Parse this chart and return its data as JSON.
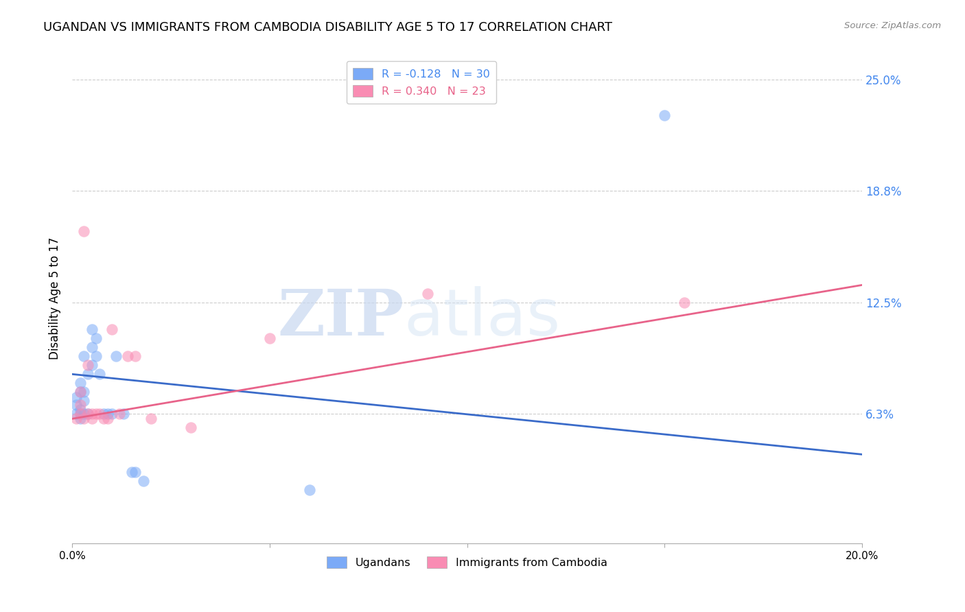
{
  "title": "UGANDAN VS IMMIGRANTS FROM CAMBODIA DISABILITY AGE 5 TO 17 CORRELATION CHART",
  "source": "Source: ZipAtlas.com",
  "ylabel": "Disability Age 5 to 17",
  "xlim": [
    0.0,
    0.2
  ],
  "ylim": [
    -0.01,
    0.265
  ],
  "xticks": [
    0.0,
    0.05,
    0.1,
    0.15,
    0.2
  ],
  "xticklabels": [
    "0.0%",
    "",
    "",
    "",
    "20.0%"
  ],
  "ytick_positions": [
    0.063,
    0.125,
    0.188,
    0.25
  ],
  "ytick_labels": [
    "6.3%",
    "12.5%",
    "18.8%",
    "25.0%"
  ],
  "legend_entries": [
    {
      "label": "R = -0.128   N = 30",
      "color": "#7baaf7"
    },
    {
      "label": "R = 0.340   N = 23",
      "color": "#f98cb3"
    }
  ],
  "legend_names": [
    "Ugandans",
    "Immigrants from Cambodia"
  ],
  "ugandan_x": [
    0.001,
    0.001,
    0.001,
    0.002,
    0.002,
    0.002,
    0.002,
    0.002,
    0.003,
    0.003,
    0.003,
    0.003,
    0.004,
    0.004,
    0.005,
    0.005,
    0.005,
    0.006,
    0.006,
    0.007,
    0.008,
    0.009,
    0.01,
    0.011,
    0.013,
    0.015,
    0.016,
    0.018,
    0.06,
    0.15
  ],
  "ugandan_y": [
    0.063,
    0.068,
    0.072,
    0.06,
    0.063,
    0.065,
    0.075,
    0.08,
    0.063,
    0.07,
    0.075,
    0.095,
    0.063,
    0.085,
    0.09,
    0.1,
    0.11,
    0.095,
    0.105,
    0.085,
    0.063,
    0.063,
    0.063,
    0.095,
    0.063,
    0.03,
    0.03,
    0.025,
    0.02,
    0.23
  ],
  "cambodia_x": [
    0.001,
    0.002,
    0.002,
    0.002,
    0.003,
    0.003,
    0.004,
    0.004,
    0.005,
    0.005,
    0.006,
    0.007,
    0.008,
    0.009,
    0.01,
    0.012,
    0.014,
    0.016,
    0.02,
    0.03,
    0.05,
    0.09,
    0.155
  ],
  "cambodia_y": [
    0.06,
    0.063,
    0.068,
    0.075,
    0.06,
    0.165,
    0.063,
    0.09,
    0.06,
    0.063,
    0.063,
    0.063,
    0.06,
    0.06,
    0.11,
    0.063,
    0.095,
    0.095,
    0.06,
    0.055,
    0.105,
    0.13,
    0.125
  ],
  "blue_line_x0": 0.0,
  "blue_line_x1": 0.2,
  "blue_line_y0": 0.085,
  "blue_line_y1": 0.04,
  "pink_line_x0": 0.0,
  "pink_line_x1": 0.2,
  "pink_line_y0": 0.06,
  "pink_line_y1": 0.135,
  "blue_line_color": "#3a6bc9",
  "pink_line_color": "#e8638a",
  "dot_blue": "#7baaf7",
  "dot_pink": "#f98cb3",
  "watermark_zip": "ZIP",
  "watermark_atlas": "atlas",
  "grid_color": "#cccccc",
  "right_axis_color": "#4488ee",
  "title_fontsize": 13,
  "label_fontsize": 12,
  "tick_fontsize": 11
}
